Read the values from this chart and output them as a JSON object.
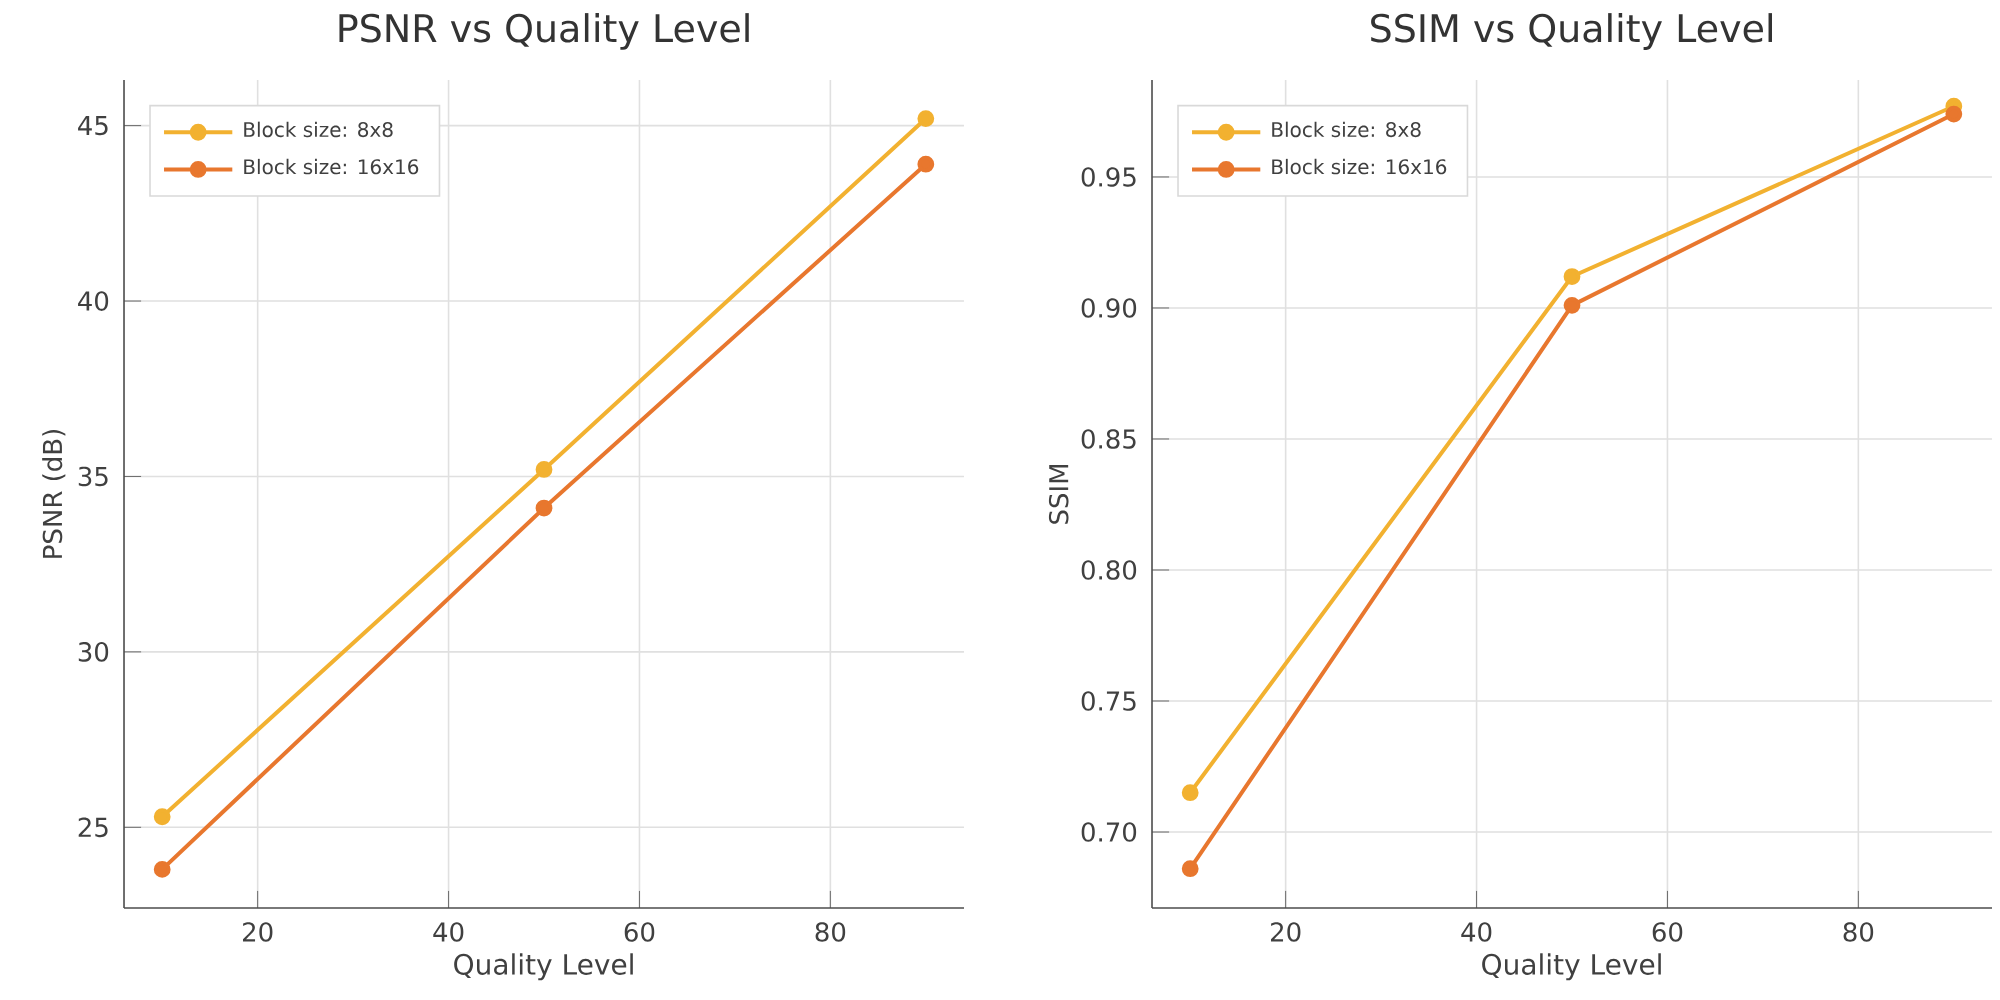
{
  "chart_data": [
    {
      "type": "line",
      "title": "PSNR vs Quality Level",
      "xlabel": "Quality Level",
      "ylabel": "PSNR (dB)",
      "x": [
        10,
        50,
        90
      ],
      "series": [
        {
          "name": "Block size: 8x8",
          "color": "#f2b130",
          "values": [
            25.3,
            35.2,
            45.2
          ]
        },
        {
          "name": "Block size: 16x16",
          "color": "#e8772e",
          "values": [
            23.8,
            34.1,
            43.9
          ]
        }
      ],
      "xlim": [
        6,
        94
      ],
      "ylim": [
        22.7,
        46.3
      ],
      "xticks": [
        20,
        40,
        60,
        80
      ],
      "yticks": [
        25,
        30,
        35,
        40,
        45
      ],
      "grid": true,
      "legend": "top left",
      "marker": "circle",
      "line_style": "solid"
    },
    {
      "type": "line",
      "title": "SSIM vs Quality Level",
      "xlabel": "Quality Level",
      "ylabel": "SSIM",
      "x": [
        10,
        50,
        90
      ],
      "series": [
        {
          "name": "Block size: 8x8",
          "color": "#f2b130",
          "values": [
            0.715,
            0.912,
            0.977
          ]
        },
        {
          "name": "Block size: 16x16",
          "color": "#e8772e",
          "values": [
            0.686,
            0.901,
            0.974
          ]
        }
      ],
      "xlim": [
        6,
        94
      ],
      "ylim": [
        0.671,
        0.987
      ],
      "xticks": [
        20,
        40,
        60,
        80
      ],
      "yticks": [
        {
          "value": 0.7,
          "label": "0.70"
        },
        0.75,
        {
          "value": 0.8,
          "label": "0.80"
        },
        0.85,
        {
          "value": 0.9,
          "label": "0.90"
        },
        0.95
      ],
      "grid": true,
      "legend": "top left",
      "marker": "circle",
      "line_style": "solid"
    }
  ]
}
